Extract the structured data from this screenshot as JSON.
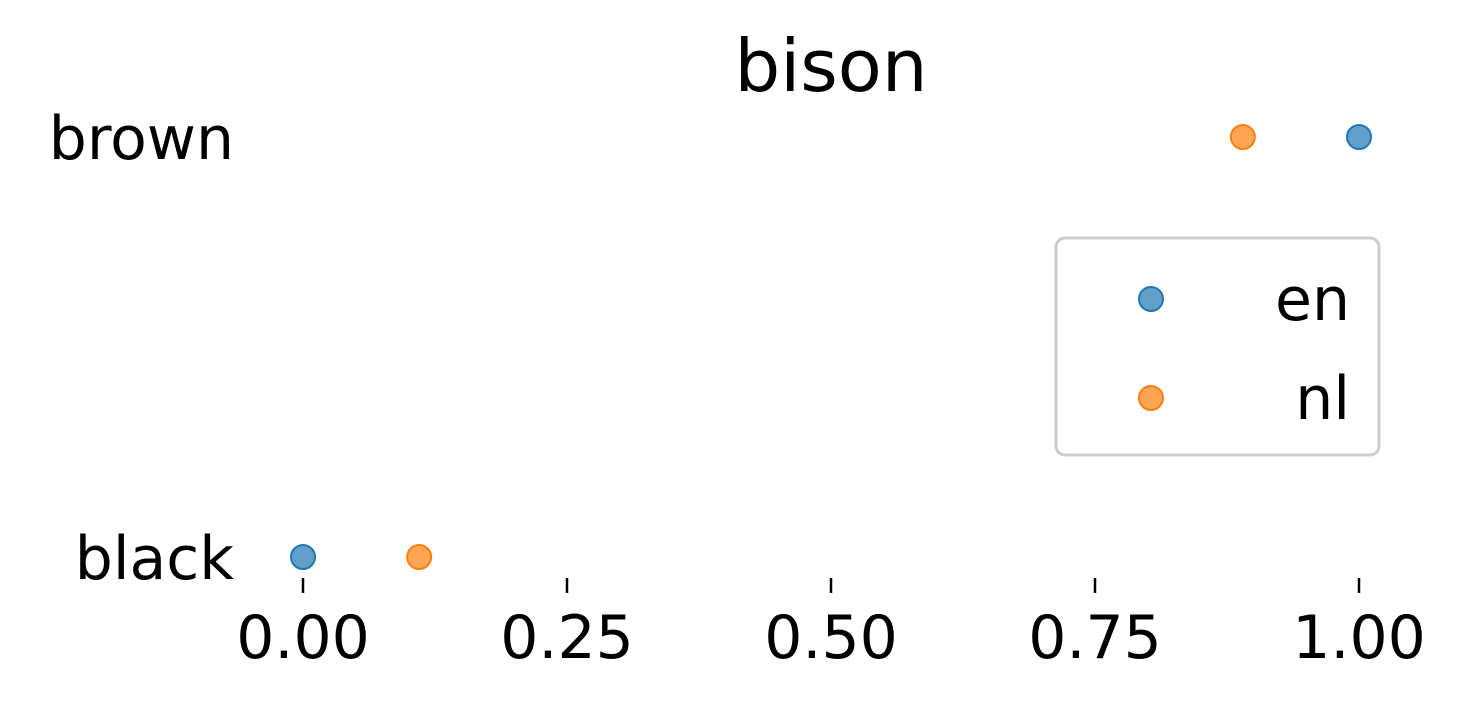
{
  "chart_data": {
    "type": "scatter",
    "title": "bison",
    "xlabel": "",
    "ylabel": "",
    "categories": [
      "black",
      "brown"
    ],
    "xlim": [
      -0.05,
      1.05
    ],
    "xticks": [
      "0.00",
      "0.25",
      "0.50",
      "0.75",
      "1.00"
    ],
    "xtick_values": [
      0.0,
      0.25,
      0.5,
      0.75,
      1.0
    ],
    "grid": false,
    "legend_position": "right",
    "series": [
      {
        "name": "en",
        "color": "#1f77b4",
        "values": [
          0.0,
          1.0
        ]
      },
      {
        "name": "nl",
        "color": "#ff7f0e",
        "values": [
          0.11,
          0.89
        ]
      }
    ]
  }
}
